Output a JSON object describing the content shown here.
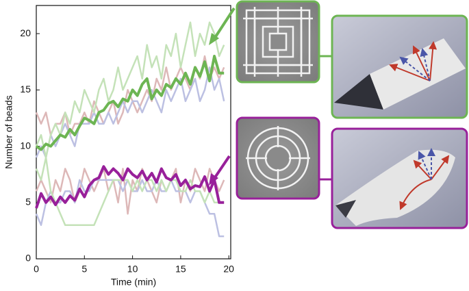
{
  "chart_data": {
    "type": "line",
    "xlabel": "Time (min)",
    "ylabel": "Number of beads",
    "x": [
      0,
      0.5,
      1,
      1.5,
      2,
      2.5,
      3,
      3.5,
      4,
      4.5,
      5,
      5.5,
      6,
      6.5,
      7,
      7.5,
      8,
      8.5,
      9,
      9.5,
      10,
      10.5,
      11,
      11.5,
      12,
      12.5,
      13,
      13.5,
      14,
      14.5,
      15,
      15.5,
      16,
      16.5,
      17,
      17.5,
      18,
      18.5,
      19,
      19.5
    ],
    "series": [
      {
        "color": "#ddb8b8",
        "values": [
          13,
          12,
          13,
          11,
          12,
          12,
          13,
          11,
          12,
          12,
          13,
          12,
          14,
          13,
          12,
          13,
          14,
          12,
          13,
          15,
          14,
          13,
          14,
          15,
          14,
          16,
          15,
          17,
          15,
          16,
          17,
          16,
          15,
          17,
          16,
          18,
          16,
          17,
          16,
          17
        ]
      },
      {
        "color": "#ddb8b8",
        "values": [
          6,
          7,
          6,
          5,
          7,
          6,
          8,
          7,
          5,
          6,
          8,
          7,
          6,
          7,
          8,
          6,
          7,
          5,
          8,
          4,
          7,
          6,
          8,
          7,
          6,
          5,
          7,
          6,
          7,
          8,
          5,
          7,
          6,
          8,
          7,
          6,
          8,
          7,
          6,
          7
        ]
      },
      {
        "color": "#bcc0e2",
        "values": [
          9,
          10,
          9,
          11,
          10,
          11,
          12,
          11,
          10,
          12,
          12,
          12,
          13,
          12,
          12,
          13,
          12,
          13,
          14,
          13,
          14,
          14,
          13,
          14,
          15,
          14,
          13,
          15,
          14,
          15,
          16,
          14,
          15,
          16,
          14,
          15,
          17,
          15,
          16,
          14
        ]
      },
      {
        "color": "#bcc0e2",
        "values": [
          4,
          3,
          5,
          6,
          5,
          5,
          6,
          6,
          5,
          7,
          6,
          6,
          7,
          7,
          7,
          7,
          7,
          7,
          6,
          7,
          6,
          6,
          7,
          6,
          6,
          7,
          6,
          6,
          7,
          6,
          6,
          6,
          5,
          6,
          6,
          5,
          4,
          4,
          2,
          2
        ]
      },
      {
        "color": "#c4e2b8",
        "values": [
          10,
          11,
          9,
          11,
          12,
          11,
          13,
          12,
          14,
          13,
          15,
          14,
          13,
          15,
          16,
          14,
          15,
          17,
          15,
          16,
          17,
          18,
          16,
          19,
          17,
          18,
          16,
          19,
          18,
          20,
          17,
          19,
          21,
          18,
          20,
          19,
          21,
          20,
          18,
          19
        ]
      },
      {
        "color": "#c4e2b8",
        "values": [
          8,
          7,
          9,
          6,
          5,
          4,
          3,
          3,
          3,
          3,
          3,
          3,
          3,
          4,
          5,
          6,
          7,
          7,
          7,
          7,
          6,
          7,
          6,
          7,
          7,
          6,
          7,
          6,
          7,
          7,
          6,
          6,
          7,
          6,
          6,
          5,
          6,
          5,
          5,
          5
        ]
      },
      {
        "color": "#6db553",
        "values": [
          10,
          9.7,
          10.2,
          10,
          10.5,
          11,
          10.8,
          11.5,
          11,
          11.8,
          12.5,
          12.3,
          12,
          13,
          13.2,
          13.8,
          14,
          13.5,
          14.2,
          14,
          15,
          14.5,
          15.5,
          16,
          14.2,
          15,
          14.5,
          15.5,
          15.2,
          16,
          15.5,
          16.5,
          15.5,
          17,
          16.2,
          17.5,
          15.8,
          18,
          16.5,
          16.5
        ]
      },
      {
        "color": "#98209a",
        "values": [
          4.5,
          5.8,
          5,
          5.5,
          4.8,
          5.5,
          5,
          5.6,
          5.2,
          6.2,
          5.5,
          6.5,
          7,
          7.2,
          8.2,
          7.5,
          8,
          7.6,
          7,
          8,
          7.5,
          7.2,
          7.8,
          7,
          7.6,
          6.8,
          8,
          7.2,
          7,
          7.5,
          6.5,
          7,
          6.2,
          6.5,
          6.4,
          7.3,
          6,
          7,
          5,
          5
        ]
      }
    ],
    "xlim": [
      0,
      20.2
    ],
    "ylim": [
      0,
      22.5
    ],
    "xticks": [
      0,
      5,
      10,
      15,
      20
    ],
    "yticks": [
      0,
      5,
      10,
      15,
      20
    ]
  }
}
